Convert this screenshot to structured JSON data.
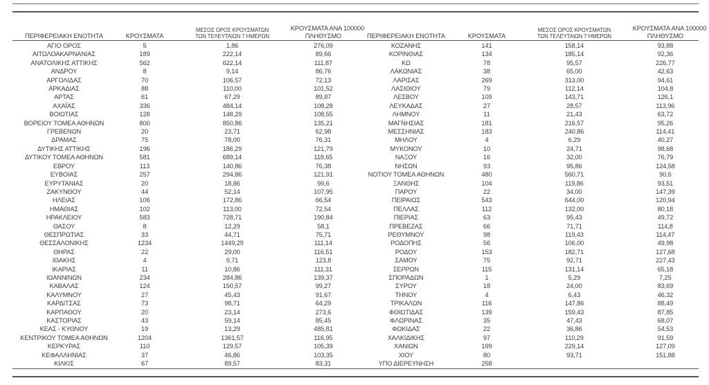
{
  "colors": {
    "text": "#3c3c3c",
    "rule": "#555555",
    "background": "#ffffff"
  },
  "header": {
    "region": "ΠΕΡΙΦΕΡΕΙΑΚΗ ΕΝΟΤΗΤΑ",
    "cases": "ΚΡΟΥΣΜΑΤΑ",
    "avg7_line1": "ΜΕΣΟΣ ΟΡΟΣ ΚΡΟΥΣΜΑΤΩΝ",
    "avg7_line2": "ΤΩΝ ΤΕΛΕΥΤΑΙΩΝ 7 ΗΜΕΡΩΝ",
    "per100k_line1": "ΚΡΟΥΣΜΑΤΑ ΑΝΑ 100000",
    "per100k_line2": "ΠΛΗΘΥΣΜΟ"
  },
  "tables": [
    {
      "rows": [
        [
          "ΑΓΙΟ ΟΡΟΣ",
          "5",
          "1,86",
          "276,09"
        ],
        [
          "ΑΙΤΩΛΟΑΚΑΡΝΑΝΙΑΣ",
          "189",
          "222,14",
          "89,66"
        ],
        [
          "ΑΝΑΤΟΛΙΚΗΣ ΑΤΤΙΚΗΣ",
          "562",
          "622,14",
          "111,87"
        ],
        [
          "ΑΝΔΡΟΥ",
          "8",
          "9,14",
          "86,76"
        ],
        [
          "ΑΡΓΟΛΙΔΑΣ",
          "70",
          "106,57",
          "72,13"
        ],
        [
          "ΑΡΚΑΔΙΑΣ",
          "88",
          "110,00",
          "101,52"
        ],
        [
          "ΑΡΤΑΣ",
          "61",
          "67,29",
          "89,87"
        ],
        [
          "ΑΧΑΪΑΣ",
          "336",
          "484,14",
          "108,28"
        ],
        [
          "ΒΟΙΩΤΙΑΣ",
          "128",
          "148,29",
          "108,55"
        ],
        [
          "ΒΟΡΕΙΟΥ ΤΟΜΕΑ ΑΘΗΝΩΝ",
          "800",
          "850,86",
          "135,21"
        ],
        [
          "ΓΡΕΒΕΝΩΝ",
          "20",
          "23,71",
          "62,98"
        ],
        [
          "ΔΡΑΜΑΣ",
          "75",
          "78,00",
          "76,31"
        ],
        [
          "ΔΥΤΙΚΗΣ ΑΤΤΙΚΗΣ",
          "196",
          "186,29",
          "121,79"
        ],
        [
          "ΔΥΤΙΚΟΥ ΤΟΜΕΑ ΑΘΗΝΩΝ",
          "581",
          "689,14",
          "118,65"
        ],
        [
          "ΕΒΡΟΥ",
          "113",
          "140,86",
          "76,38"
        ],
        [
          "ΕΥΒΟΙΑΣ",
          "257",
          "294,86",
          "121,91"
        ],
        [
          "ΕΥΡΥΤΑΝΙΑΣ",
          "20",
          "18,86",
          "99,6"
        ],
        [
          "ΖΑΚΥΝΘΟΥ",
          "44",
          "52,14",
          "107,95"
        ],
        [
          "ΗΛΕΙΑΣ",
          "106",
          "172,86",
          "66,54"
        ],
        [
          "ΗΜΑΘΙΑΣ",
          "102",
          "113,00",
          "72,54"
        ],
        [
          "ΗΡΑΚΛΕΙΟΥ",
          "583",
          "728,71",
          "190,84"
        ],
        [
          "ΘΑΣΟΥ",
          "8",
          "12,29",
          "58,1"
        ],
        [
          "ΘΕΣΠΡΩΤΙΑΣ",
          "33",
          "44,71",
          "75,71"
        ],
        [
          "ΘΕΣΣΑΛΟΝΙΚΗΣ",
          "1234",
          "1449,29",
          "111,14"
        ],
        [
          "ΘΗΡΑΣ",
          "22",
          "29,00",
          "116,51"
        ],
        [
          "ΙΘΑΚΗΣ",
          "4",
          "9,71",
          "123,8"
        ],
        [
          "ΙΚΑΡΙΑΣ",
          "11",
          "10,86",
          "111,31"
        ],
        [
          "ΙΩΑΝΝΙΝΩΝ",
          "234",
          "284,86",
          "139,37"
        ],
        [
          "ΚΑΒΑΛΑΣ",
          "124",
          "150,57",
          "99,27"
        ],
        [
          "ΚΑΛΥΜΝΟΥ",
          "27",
          "45,43",
          "91,67"
        ],
        [
          "ΚΑΡΔΙΤΣΑΣ",
          "73",
          "98,71",
          "64,29"
        ],
        [
          "ΚΑΡΠΑΘΟΥ",
          "20",
          "23,14",
          "273,6"
        ],
        [
          "ΚΑΣΤΟΡΙΑΣ",
          "43",
          "59,14",
          "85,45"
        ],
        [
          "ΚΕΑΣ - ΚΥΘΝΟΥ",
          "19",
          "13,29",
          "485,81"
        ],
        [
          "ΚΕΝΤΡΙΚΟΥ ΤΟΜΕΑ ΑΘΗΝΩΝ",
          "1204",
          "1361,57",
          "116,95"
        ],
        [
          "ΚΕΡΚΥΡΑΣ",
          "110",
          "129,57",
          "105,39"
        ],
        [
          "ΚΕΦΑΛΛΗΝΙΑΣ",
          "37",
          "46,86",
          "103,35"
        ],
        [
          "ΚΙΛΚΙΣ",
          "67",
          "89,57",
          "83,31"
        ]
      ]
    },
    {
      "rows": [
        [
          "ΚΟΖΑΝΗΣ",
          "141",
          "158,14",
          "93,88"
        ],
        [
          "ΚΟΡΙΝΘΙΑΣ",
          "134",
          "185,14",
          "92,36"
        ],
        [
          "ΚΩ",
          "78",
          "95,57",
          "226,77"
        ],
        [
          "ΛΑΚΩΝΙΑΣ",
          "38",
          "65,00",
          "42,63"
        ],
        [
          "ΛΑΡΙΣΑΣ",
          "269",
          "313,00",
          "94,61"
        ],
        [
          "ΛΑΣΙΘΙΟΥ",
          "79",
          "112,14",
          "104,8"
        ],
        [
          "ΛΕΣΒΟΥ",
          "109",
          "143,71",
          "126,1"
        ],
        [
          "ΛΕΥΚΑΔΑΣ",
          "27",
          "28,57",
          "113,96"
        ],
        [
          "ΛΗΜΝΟΥ",
          "11",
          "21,43",
          "63,72"
        ],
        [
          "ΜΑΓΝΗΣΙΑΣ",
          "181",
          "216,57",
          "95,26"
        ],
        [
          "ΜΕΣΣΗΝΙΑΣ",
          "183",
          "240,86",
          "114,41"
        ],
        [
          "ΜΗΛΟΥ",
          "4",
          "6,29",
          "40,27"
        ],
        [
          "ΜΥΚΟΝΟΥ",
          "10",
          "24,71",
          "98,68"
        ],
        [
          "ΝΑΞΟΥ",
          "16",
          "32,00",
          "76,79"
        ],
        [
          "ΝΗΣΩΝ",
          "93",
          "95,86",
          "124,58"
        ],
        [
          "ΝΟΤΙΟΥ ΤΟΜΕΑ ΑΘΗΝΩΝ",
          "480",
          "560,71",
          "90,6"
        ],
        [
          "ΞΑΝΘΗΣ",
          "104",
          "119,86",
          "93,51"
        ],
        [
          "ΠΑΡΟΥ",
          "22",
          "34,00",
          "147,39"
        ],
        [
          "ΠΕΙΡΑΙΩΣ",
          "543",
          "644,00",
          "120,94"
        ],
        [
          "ΠΕΛΛΑΣ",
          "112",
          "132,00",
          "80,18"
        ],
        [
          "ΠΙΕΡΙΑΣ",
          "63",
          "95,43",
          "49,72"
        ],
        [
          "ΠΡΕΒΕΖΑΣ",
          "66",
          "71,71",
          "114,8"
        ],
        [
          "ΡΕΘΥΜΝΟΥ",
          "98",
          "119,43",
          "114,47"
        ],
        [
          "ΡΟΔΟΠΗΣ",
          "56",
          "106,00",
          "49,98"
        ],
        [
          "ΡΟΔΟΥ",
          "153",
          "182,71",
          "127,68"
        ],
        [
          "ΣΑΜΟΥ",
          "75",
          "92,71",
          "227,43"
        ],
        [
          "ΣΕΡΡΩΝ",
          "115",
          "131,14",
          "65,18"
        ],
        [
          "ΣΠΟΡΑΔΩΝ",
          "1",
          "5,29",
          "7,25"
        ],
        [
          "ΣΥΡΟΥ",
          "18",
          "24,00",
          "83,69"
        ],
        [
          "ΤΗΝΟΥ",
          "4",
          "6,43",
          "46,32"
        ],
        [
          "ΤΡΙΚΑΛΩΝ",
          "116",
          "147,86",
          "88,49"
        ],
        [
          "ΦΘΙΩΤΙΔΑΣ",
          "139",
          "159,43",
          "87,85"
        ],
        [
          "ΦΛΩΡΙΝΑΣ",
          "35",
          "47,43",
          "68,07"
        ],
        [
          "ΦΩΚΙΔΑΣ",
          "22",
          "36,86",
          "54,53"
        ],
        [
          "ΧΑΛΚΙΔΙΚΗΣ",
          "97",
          "110,29",
          "91,59"
        ],
        [
          "ΧΑΝΙΩΝ",
          "199",
          "229,14",
          "127,09"
        ],
        [
          "ΧΙΟΥ",
          "80",
          "93,71",
          "151,88"
        ],
        [
          "ΥΠΟ ΔΙΕΡΕΥΝΗΣΗ",
          "258",
          "",
          ""
        ]
      ]
    }
  ]
}
